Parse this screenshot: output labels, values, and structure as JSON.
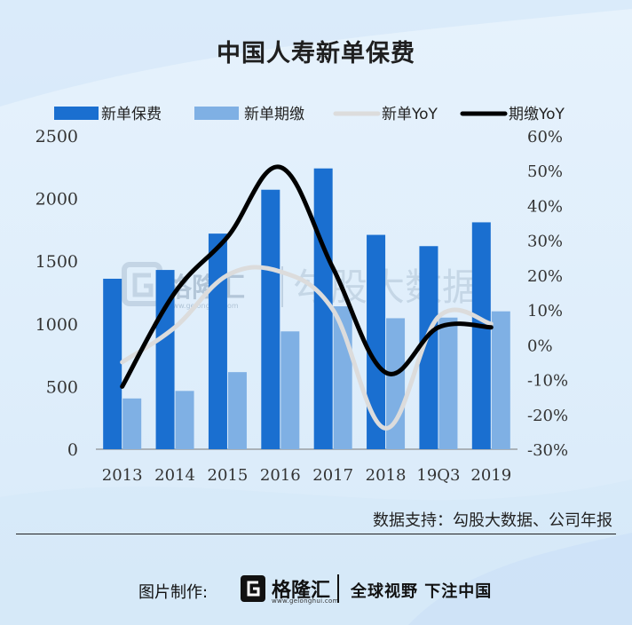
{
  "title": "中国人寿新单保费",
  "source": "数据支持：勾股大数据、公司年报",
  "footer": {
    "made_by": "图片制作:",
    "logo_name": "格隆汇",
    "logo_url": "www.gelonghui.com",
    "slogan": "全球视野 下注中国"
  },
  "watermark": {
    "brand": "格隆汇",
    "url": "www.gelonghui.com",
    "partner": "勾股大数据"
  },
  "colors": {
    "bar_primary": "#1a6fd0",
    "bar_secondary": "#7fb0e4",
    "line_xindan": "#dcdcdc",
    "line_qijiao": "#000000"
  },
  "chart_data": {
    "type": "bar",
    "categories": [
      "2013",
      "2014",
      "2015",
      "2016",
      "2017",
      "2018",
      "19Q3",
      "2019"
    ],
    "series": [
      {
        "name": "新单保费",
        "kind": "bar",
        "axis": "left",
        "values": [
          1360,
          1430,
          1720,
          2070,
          2240,
          1710,
          1620,
          1810
        ]
      },
      {
        "name": "新单期缴",
        "kind": "bar",
        "axis": "left",
        "values": [
          405,
          465,
          615,
          940,
          1140,
          1045,
          1050,
          1100
        ]
      },
      {
        "name": "新单YoY",
        "kind": "line",
        "axis": "right",
        "values": [
          -0.05,
          0.05,
          0.2,
          0.21,
          0.1,
          -0.24,
          0.08,
          0.06
        ]
      },
      {
        "name": "期缴YoY",
        "kind": "line",
        "axis": "right",
        "values": [
          -0.12,
          0.15,
          0.31,
          0.51,
          0.22,
          -0.08,
          0.05,
          0.05
        ]
      }
    ],
    "y_left": {
      "min": 0,
      "max": 2500,
      "ticks": [
        0,
        500,
        1000,
        1500,
        2000,
        2500
      ],
      "labels": [
        "0",
        "500",
        "1000",
        "1500",
        "2000",
        "2500"
      ]
    },
    "y_right": {
      "min": -0.3,
      "max": 0.6,
      "ticks": [
        -0.3,
        -0.2,
        -0.1,
        0.0,
        0.1,
        0.2,
        0.3,
        0.4,
        0.5,
        0.6
      ],
      "labels": [
        "-30%",
        "-20%",
        "-10%",
        "0%",
        "10%",
        "20%",
        "30%",
        "40%",
        "50%",
        "60%"
      ]
    },
    "legend": {
      "position": "top"
    },
    "grid": false
  }
}
